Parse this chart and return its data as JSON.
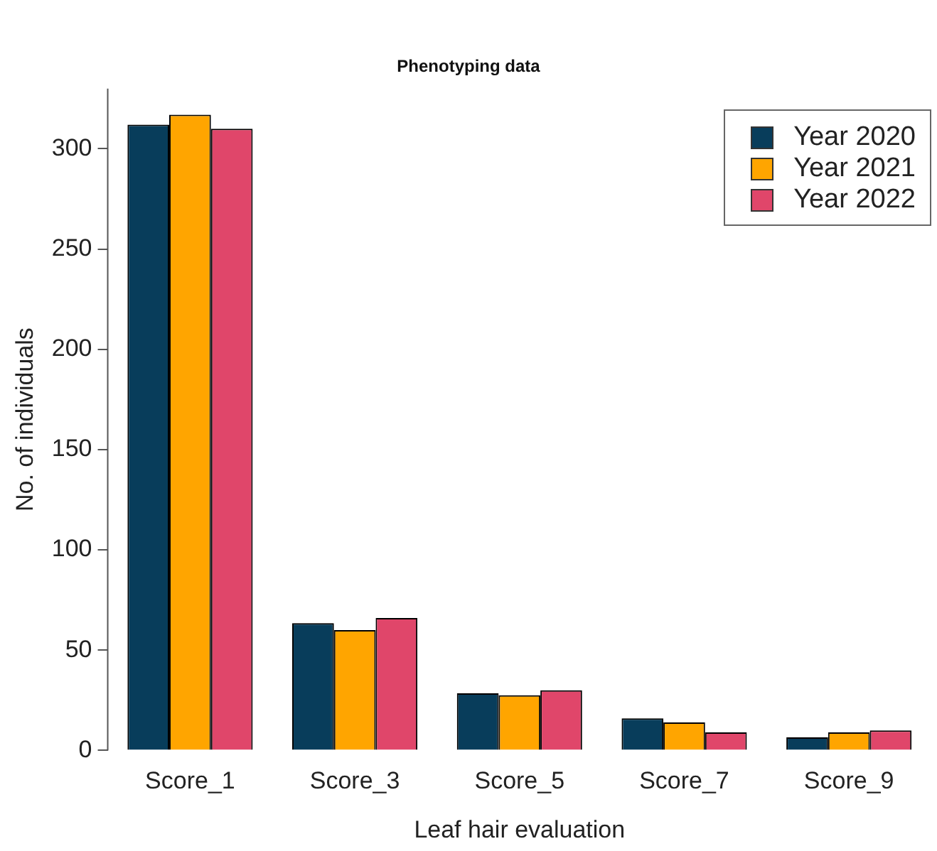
{
  "chart_data": {
    "type": "bar",
    "title": "Phenotyping data",
    "xlabel": "Leaf hair evaluation",
    "ylabel": "No. of individuals",
    "categories": [
      "Score_1",
      "Score_3",
      "Score_5",
      "Score_7",
      "Score_9"
    ],
    "series": [
      {
        "name": "Year 2020",
        "color": "#083d5b",
        "values": [
          312,
          63.5,
          28.5,
          16,
          6.5
        ]
      },
      {
        "name": "Year 2021",
        "color": "#ffa500",
        "values": [
          317,
          60,
          27.5,
          14,
          9
        ]
      },
      {
        "name": "Year 2022",
        "color": "#e0466a",
        "values": [
          310,
          66,
          30,
          9,
          10
        ]
      }
    ],
    "ylim": [
      0,
      330
    ],
    "yticks": [
      0,
      50,
      100,
      150,
      200,
      250,
      300
    ],
    "grid": false,
    "legend": "top right"
  }
}
